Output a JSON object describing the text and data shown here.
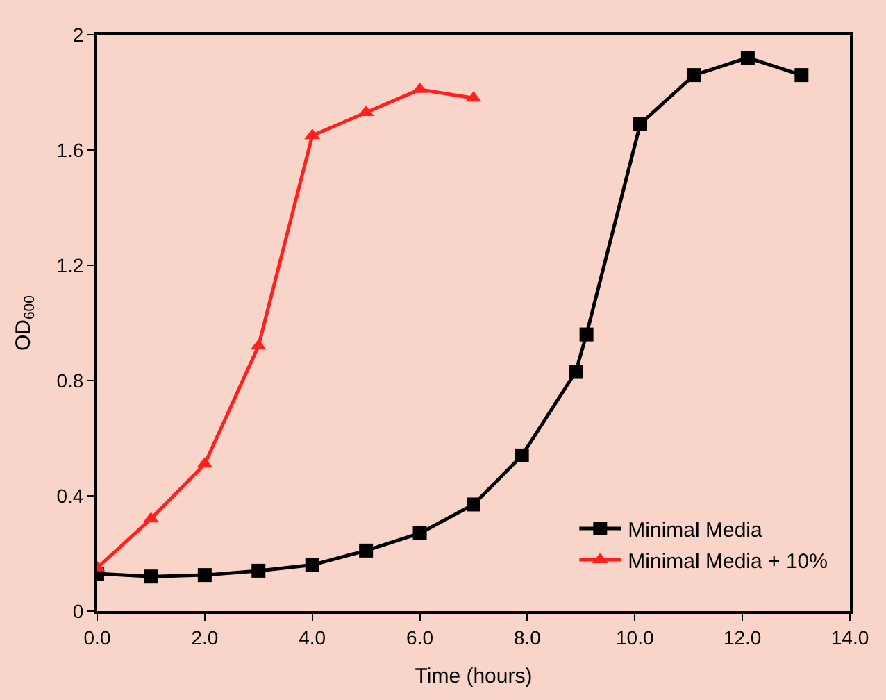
{
  "chart_data": {
    "type": "line",
    "xlabel": "Time (hours)",
    "ylabel": "OD$_{600}$",
    "xlim": [
      0,
      14
    ],
    "xticks": [
      {
        "value": 0,
        "label": "0.0"
      },
      {
        "value": 2,
        "label": "2.0"
      },
      {
        "value": 4,
        "label": "4.0"
      },
      {
        "value": 6,
        "label": "6.0"
      },
      {
        "value": 8,
        "label": "8.0"
      },
      {
        "value": 10,
        "label": "10.0"
      },
      {
        "value": 12,
        "label": "12.0"
      },
      {
        "value": 14,
        "label": "14.0"
      }
    ],
    "ylim": [
      0,
      2
    ],
    "yticks": [
      0,
      0.4,
      0.8,
      1.2,
      1.6,
      2
    ],
    "grid": false,
    "legend": "bottom right",
    "line_style": "solid",
    "series": [
      {
        "name": "Minimal Media",
        "color": "#000000",
        "marker": "square",
        "x": [
          0,
          1,
          2,
          3,
          4,
          5,
          6,
          7,
          7.9,
          8.9,
          9.1,
          10.1,
          11.1,
          12.1,
          13.1
        ],
        "values": [
          0.13,
          0.12,
          0.125,
          0.14,
          0.16,
          0.21,
          0.27,
          0.37,
          0.54,
          0.83,
          0.96,
          1.69,
          1.86,
          1.92,
          1.86
        ]
      },
      {
        "name": "Minimal Media + 10%",
        "color": "#ff2020",
        "marker": "triangle",
        "x": [
          0,
          1,
          2,
          3,
          4,
          5,
          6,
          7
        ],
        "values": [
          0.15,
          0.32,
          0.51,
          0.92,
          1.65,
          1.73,
          1.81,
          1.78
        ]
      }
    ]
  }
}
